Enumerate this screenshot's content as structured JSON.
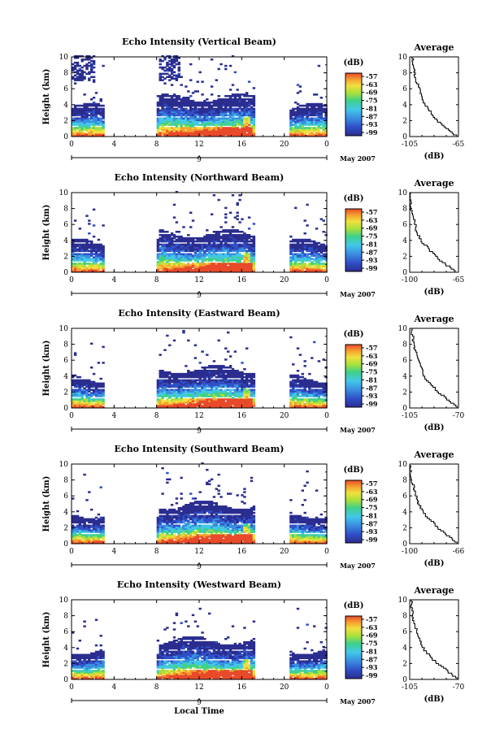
{
  "figure": {
    "x_axis_label": "Local Time",
    "date_label": "May 2007",
    "day_label": "9",
    "y_axis_label": "Height (km)",
    "colorbar_unit": "(dB)",
    "average_title": "Average",
    "average_xlabel": "(dB)"
  },
  "chart_data": [
    {
      "type": "heatmap",
      "title": "Echo Intensity (Vertical Beam)",
      "xlabel": "",
      "ylabel": "Height (km)",
      "x_ticks": [
        "0",
        "4",
        "8",
        "12",
        "16",
        "20",
        "0"
      ],
      "xlim": [
        0,
        24
      ],
      "y_ticks": [
        "0",
        "2",
        "4",
        "6",
        "8",
        "10"
      ],
      "ylim": [
        0,
        10
      ],
      "colorbar_ticks": [
        "-57",
        "-63",
        "-69",
        "-75",
        "-81",
        "-87",
        "-93",
        "-99"
      ],
      "data_coverage_hours": [
        [
          0,
          3
        ],
        [
          8,
          17.2
        ],
        [
          20.5,
          24
        ]
      ],
      "average_profile": {
        "xlim": [
          -105,
          -65
        ],
        "x_ticks": [
          "-105",
          "-65"
        ],
        "y_ticks": [
          "0",
          "2",
          "4",
          "6",
          "8",
          "10"
        ],
        "x": [
          -67,
          -75,
          -83,
          -88,
          -90,
          -93,
          -95,
          -97,
          -100,
          -101,
          -103
        ],
        "y": [
          0,
          1,
          2,
          3,
          3.5,
          4,
          5,
          6,
          7,
          8,
          10
        ]
      }
    },
    {
      "type": "heatmap",
      "title": "Echo Intensity (Northward Beam)",
      "xlabel": "",
      "ylabel": "Height (km)",
      "x_ticks": [
        "0",
        "4",
        "8",
        "12",
        "16",
        "20",
        "0"
      ],
      "xlim": [
        0,
        24
      ],
      "y_ticks": [
        "0",
        "2",
        "4",
        "6",
        "8",
        "10"
      ],
      "ylim": [
        0,
        10
      ],
      "colorbar_ticks": [
        "-57",
        "-63",
        "-69",
        "-75",
        "-81",
        "-87",
        "-93",
        "-99"
      ],
      "data_coverage_hours": [
        [
          0,
          3
        ],
        [
          8,
          17.2
        ],
        [
          20.5,
          24
        ]
      ],
      "average_profile": {
        "xlim": [
          -100,
          -65
        ],
        "x_ticks": [
          "-100",
          "-65"
        ],
        "y_ticks": [
          "0",
          "2",
          "4",
          "6",
          "8",
          "10"
        ],
        "x": [
          -67,
          -75,
          -82,
          -87,
          -90,
          -92,
          -95,
          -96,
          -98,
          -99,
          -100
        ],
        "y": [
          0,
          1,
          2,
          3,
          3.5,
          4,
          5,
          6,
          7,
          8,
          10
        ]
      }
    },
    {
      "type": "heatmap",
      "title": "Echo Intensity (Eastward Beam)",
      "xlabel": "",
      "ylabel": "Height (km)",
      "x_ticks": [
        "0",
        "4",
        "8",
        "12",
        "16",
        "20",
        "0"
      ],
      "xlim": [
        0,
        24
      ],
      "y_ticks": [
        "0",
        "2",
        "4",
        "6",
        "8",
        "10"
      ],
      "ylim": [
        0,
        10
      ],
      "colorbar_ticks": [
        "-57",
        "-63",
        "-69",
        "-75",
        "-81",
        "-87",
        "-93",
        "-99"
      ],
      "data_coverage_hours": [
        [
          0,
          3
        ],
        [
          8,
          17.2
        ],
        [
          20.5,
          24
        ]
      ],
      "average_profile": {
        "xlim": [
          -105,
          -70
        ],
        "x_ticks": [
          "-105",
          "-70"
        ],
        "y_ticks": [
          "0",
          "2",
          "4",
          "6",
          "8",
          "10"
        ],
        "x": [
          -71,
          -78,
          -85,
          -90,
          -93,
          -95,
          -97,
          -99,
          -101,
          -102,
          -104
        ],
        "y": [
          0,
          1,
          2,
          3,
          3.5,
          4,
          5,
          6,
          7,
          8,
          10
        ]
      }
    },
    {
      "type": "heatmap",
      "title": "Echo Intensity (Southward Beam)",
      "xlabel": "",
      "ylabel": "Height (km)",
      "x_ticks": [
        "0",
        "4",
        "8",
        "12",
        "16",
        "20",
        "0"
      ],
      "xlim": [
        0,
        24
      ],
      "y_ticks": [
        "0",
        "2",
        "4",
        "6",
        "8",
        "10"
      ],
      "ylim": [
        0,
        10
      ],
      "colorbar_ticks": [
        "-57",
        "-63",
        "-69",
        "-75",
        "-81",
        "-87",
        "-93",
        "-99"
      ],
      "data_coverage_hours": [
        [
          0,
          3
        ],
        [
          8,
          17.2
        ],
        [
          20.5,
          24
        ]
      ],
      "average_profile": {
        "xlim": [
          -100,
          -66
        ],
        "x_ticks": [
          "-100",
          "-66"
        ],
        "y_ticks": [
          "0",
          "2",
          "4",
          "6",
          "8",
          "10"
        ],
        "x": [
          -67,
          -74,
          -81,
          -86,
          -89,
          -91,
          -94,
          -96,
          -97,
          -99,
          -100
        ],
        "y": [
          0,
          1,
          2,
          3,
          3.5,
          4,
          5,
          6,
          7,
          8,
          10
        ]
      }
    },
    {
      "type": "heatmap",
      "title": "Echo Intensity (Westward Beam)",
      "xlabel": "Local Time",
      "ylabel": "Height (km)",
      "x_ticks": [
        "0",
        "4",
        "8",
        "12",
        "16",
        "20",
        "0"
      ],
      "xlim": [
        0,
        24
      ],
      "y_ticks": [
        "0",
        "2",
        "4",
        "6",
        "8",
        "10"
      ],
      "ylim": [
        0,
        10
      ],
      "colorbar_ticks": [
        "-57",
        "-63",
        "-69",
        "-75",
        "-81",
        "-87",
        "-93",
        "-99"
      ],
      "data_coverage_hours": [
        [
          0,
          3
        ],
        [
          8,
          17.2
        ],
        [
          20.5,
          24
        ]
      ],
      "average_profile": {
        "xlim": [
          -105,
          -70
        ],
        "x_ticks": [
          "-105",
          "-70"
        ],
        "y_ticks": [
          "0",
          "2",
          "4",
          "6",
          "8",
          "10"
        ],
        "x": [
          -71,
          -78,
          -86,
          -91,
          -94,
          -96,
          -98,
          -100,
          -102,
          -103,
          -104
        ],
        "y": [
          0,
          1,
          2,
          3,
          3.5,
          4,
          5,
          6,
          7,
          8,
          10
        ]
      }
    }
  ],
  "colors": {
    "scale": [
      "#2b2d8f",
      "#3050c8",
      "#3a8ee0",
      "#43c8e8",
      "#3fd08a",
      "#a8e03c",
      "#f0e040",
      "#f5a030",
      "#e84a2a"
    ]
  }
}
